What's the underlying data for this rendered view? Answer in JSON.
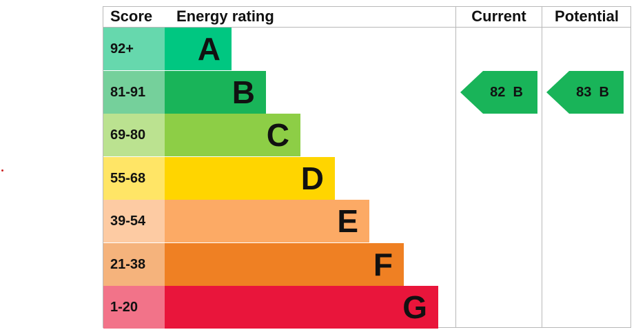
{
  "chart_data": {
    "type": "table",
    "headers": {
      "score": "Score",
      "rating": "Energy rating",
      "current": "Current",
      "potential": "Potential"
    },
    "bands": [
      {
        "score": "92+",
        "letter": "A",
        "color": "#00c781",
        "light": "#66d8ad"
      },
      {
        "score": "81-91",
        "letter": "B",
        "color": "#19b459",
        "light": "#75d09b"
      },
      {
        "score": "69-80",
        "letter": "C",
        "color": "#8dce46",
        "light": "#bbe290"
      },
      {
        "score": "55-68",
        "letter": "D",
        "color": "#ffd500",
        "light": "#ffe566"
      },
      {
        "score": "39-54",
        "letter": "E",
        "color": "#fcaa65",
        "light": "#fdcba3"
      },
      {
        "score": "21-38",
        "letter": "F",
        "color": "#ef8023",
        "light": "#f5b37c"
      },
      {
        "score": "1-20",
        "letter": "G",
        "color": "#e9153b",
        "light": "#f27389"
      }
    ],
    "current": {
      "value": 82,
      "letter": "B",
      "label": "82  B",
      "color": "#19b459"
    },
    "potential": {
      "value": 83,
      "letter": "B",
      "label": "83  B",
      "color": "#19b459"
    }
  },
  "colors": {
    "grid": "#b8b8b8",
    "marker_dot": "#cc2222"
  }
}
